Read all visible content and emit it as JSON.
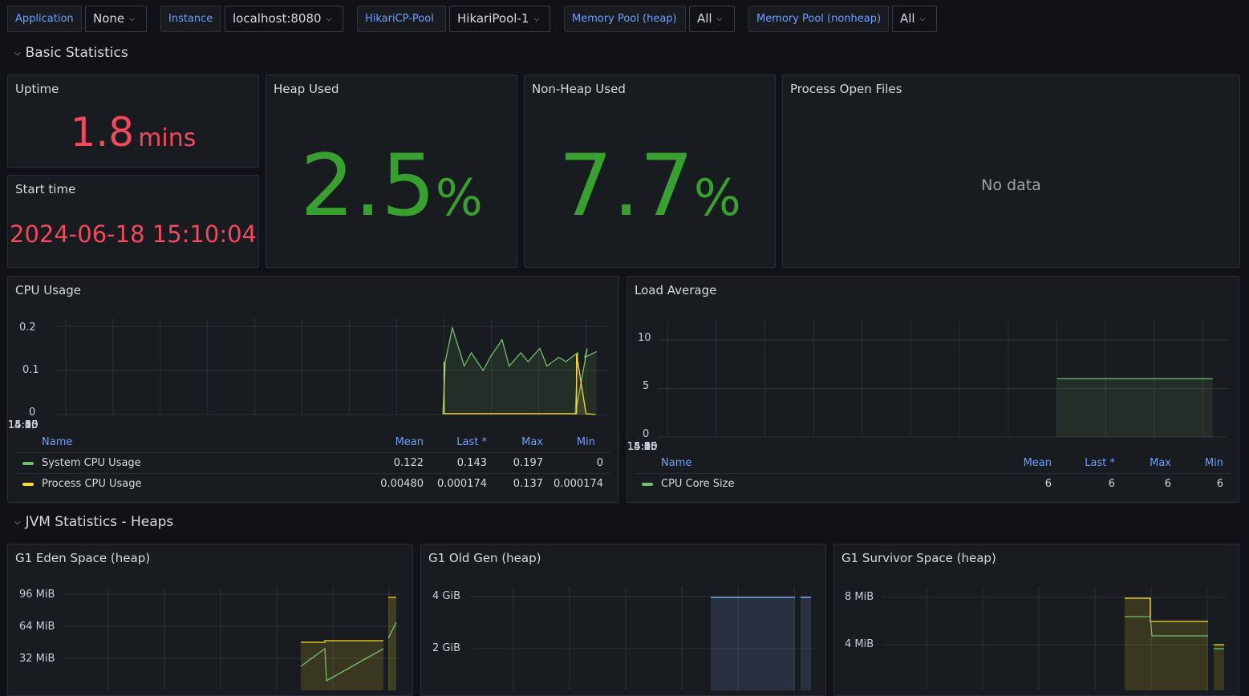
{
  "variables": [
    {
      "label": "Application",
      "value": "None"
    },
    {
      "label": "Instance",
      "value": "localhost:8080"
    },
    {
      "label": "HikariCP-Pool",
      "value": "HikariPool-1"
    },
    {
      "label": "Memory Pool (heap)",
      "value": "All"
    },
    {
      "label": "Memory Pool (nonheap)",
      "value": "All"
    }
  ],
  "rows": {
    "basic": "Basic Statistics",
    "jvm_heaps": "JVM Statistics - Heaps"
  },
  "panels": {
    "uptime": {
      "title": "Uptime",
      "value": "1.8",
      "unit": "mins"
    },
    "start_time": {
      "title": "Start time",
      "value": "2024-06-18 15:10:04"
    },
    "heap_used": {
      "title": "Heap Used",
      "value": "2.5",
      "unit": "%"
    },
    "nonheap_used": {
      "title": "Non-Heap Used",
      "value": "7.7",
      "unit": "%"
    },
    "open_files": {
      "title": "Process Open Files",
      "no_data": "No data"
    },
    "cpu": {
      "title": "CPU Usage",
      "legend_headers": {
        "name": "Name",
        "mean": "Mean",
        "last": "Last *",
        "max": "Max",
        "min": "Min"
      },
      "legend": [
        {
          "name": "System CPU Usage",
          "mean": "0.122",
          "last": "0.143",
          "max": "0.197",
          "min": "0"
        },
        {
          "name": "Process CPU Usage",
          "mean": "0.00480",
          "last": "0.000174",
          "max": "0.137",
          "min": "0.000174"
        }
      ]
    },
    "load": {
      "title": "Load Average",
      "legend_headers": {
        "name": "Name",
        "mean": "Mean",
        "last": "Last *",
        "max": "Max",
        "min": "Min"
      },
      "legend": [
        {
          "name": "CPU Core Size",
          "mean": "6",
          "last": "6",
          "max": "6",
          "min": "6"
        }
      ]
    },
    "eden": {
      "title": "G1 Eden Space (heap)"
    },
    "oldgen": {
      "title": "G1 Old Gen (heap)"
    },
    "survivor": {
      "title": "G1 Survivor Space (heap)"
    }
  },
  "colors": {
    "green": "#73bf69",
    "yellow": "#fade2a",
    "blue": "#8ab8ff",
    "red": "#f2495c",
    "stat_green": "#37a02f",
    "link": "#6e9fff"
  },
  "chart_data": [
    {
      "id": "cpu",
      "type": "line",
      "title": "CPU Usage",
      "x_ticks": [
        "14:15",
        "14:20",
        "14:25",
        "14:30",
        "14:35",
        "14:40",
        "14:45",
        "14:50",
        "14:55",
        "15:00",
        "15:05",
        "15:10"
      ],
      "y_ticks": [
        "0.2",
        "0.1",
        "0"
      ],
      "ylim": [
        0,
        0.2
      ],
      "series": [
        {
          "name": "System CPU Usage",
          "color": "#73bf69",
          "x": [
            "14:55",
            "14:55",
            "14:56",
            "14:57",
            "14:58",
            "14:59",
            "15:00",
            "15:01",
            "15:02",
            "15:03",
            "15:04",
            "15:05",
            "15:06",
            "15:07",
            "15:08",
            "15:09",
            "15:09",
            "15:10",
            "15:10",
            "15:11"
          ],
          "y": [
            0.0,
            0.12,
            0.197,
            0.11,
            0.14,
            0.1,
            0.13,
            0.17,
            0.11,
            0.14,
            0.12,
            0.15,
            0.11,
            0.13,
            0.12,
            0.14,
            0.0,
            0.15,
            0.13,
            0.143
          ]
        },
        {
          "name": "Process CPU Usage",
          "color": "#fade2a",
          "x": [
            "14:55",
            "14:55",
            "15:09",
            "15:09",
            "15:10",
            "15:11"
          ],
          "y": [
            0.12,
            0.002,
            0.002,
            0.137,
            0.002,
            0.000174
          ]
        }
      ]
    },
    {
      "id": "load",
      "type": "area",
      "title": "Load Average",
      "x_ticks": [
        "14:15",
        "14:20",
        "14:25",
        "14:30",
        "14:35",
        "14:40",
        "14:45",
        "14:50",
        "14:55",
        "15:00",
        "15:05",
        "15:10"
      ],
      "y_ticks": [
        "10",
        "5",
        "0"
      ],
      "ylim": [
        0,
        10
      ],
      "series": [
        {
          "name": "CPU Core Size",
          "color": "#73bf69",
          "x": [
            "14:55",
            "15:09",
            "15:10",
            "15:11"
          ],
          "y": [
            6,
            6,
            6,
            6
          ]
        }
      ]
    },
    {
      "id": "eden",
      "type": "area",
      "title": "G1 Eden Space (heap)",
      "y_ticks": [
        "96 MiB",
        "64 MiB",
        "32 MiB"
      ],
      "series": [
        {
          "color": "#fade2a",
          "shape": "step-committed"
        },
        {
          "color": "#73bf69",
          "shape": "sawtooth-used"
        }
      ]
    },
    {
      "id": "oldgen",
      "type": "area",
      "title": "G1 Old Gen (heap)",
      "y_ticks": [
        "4 GiB",
        "2 GiB"
      ],
      "series": [
        {
          "color": "#8ab8ff",
          "shape": "flat-max"
        }
      ]
    },
    {
      "id": "survivor",
      "type": "area",
      "title": "G1 Survivor Space (heap)",
      "y_ticks": [
        "8 MiB",
        "4 MiB"
      ],
      "series": [
        {
          "color": "#fade2a",
          "shape": "step-down"
        },
        {
          "color": "#73bf69",
          "shape": "step-down"
        }
      ]
    }
  ]
}
